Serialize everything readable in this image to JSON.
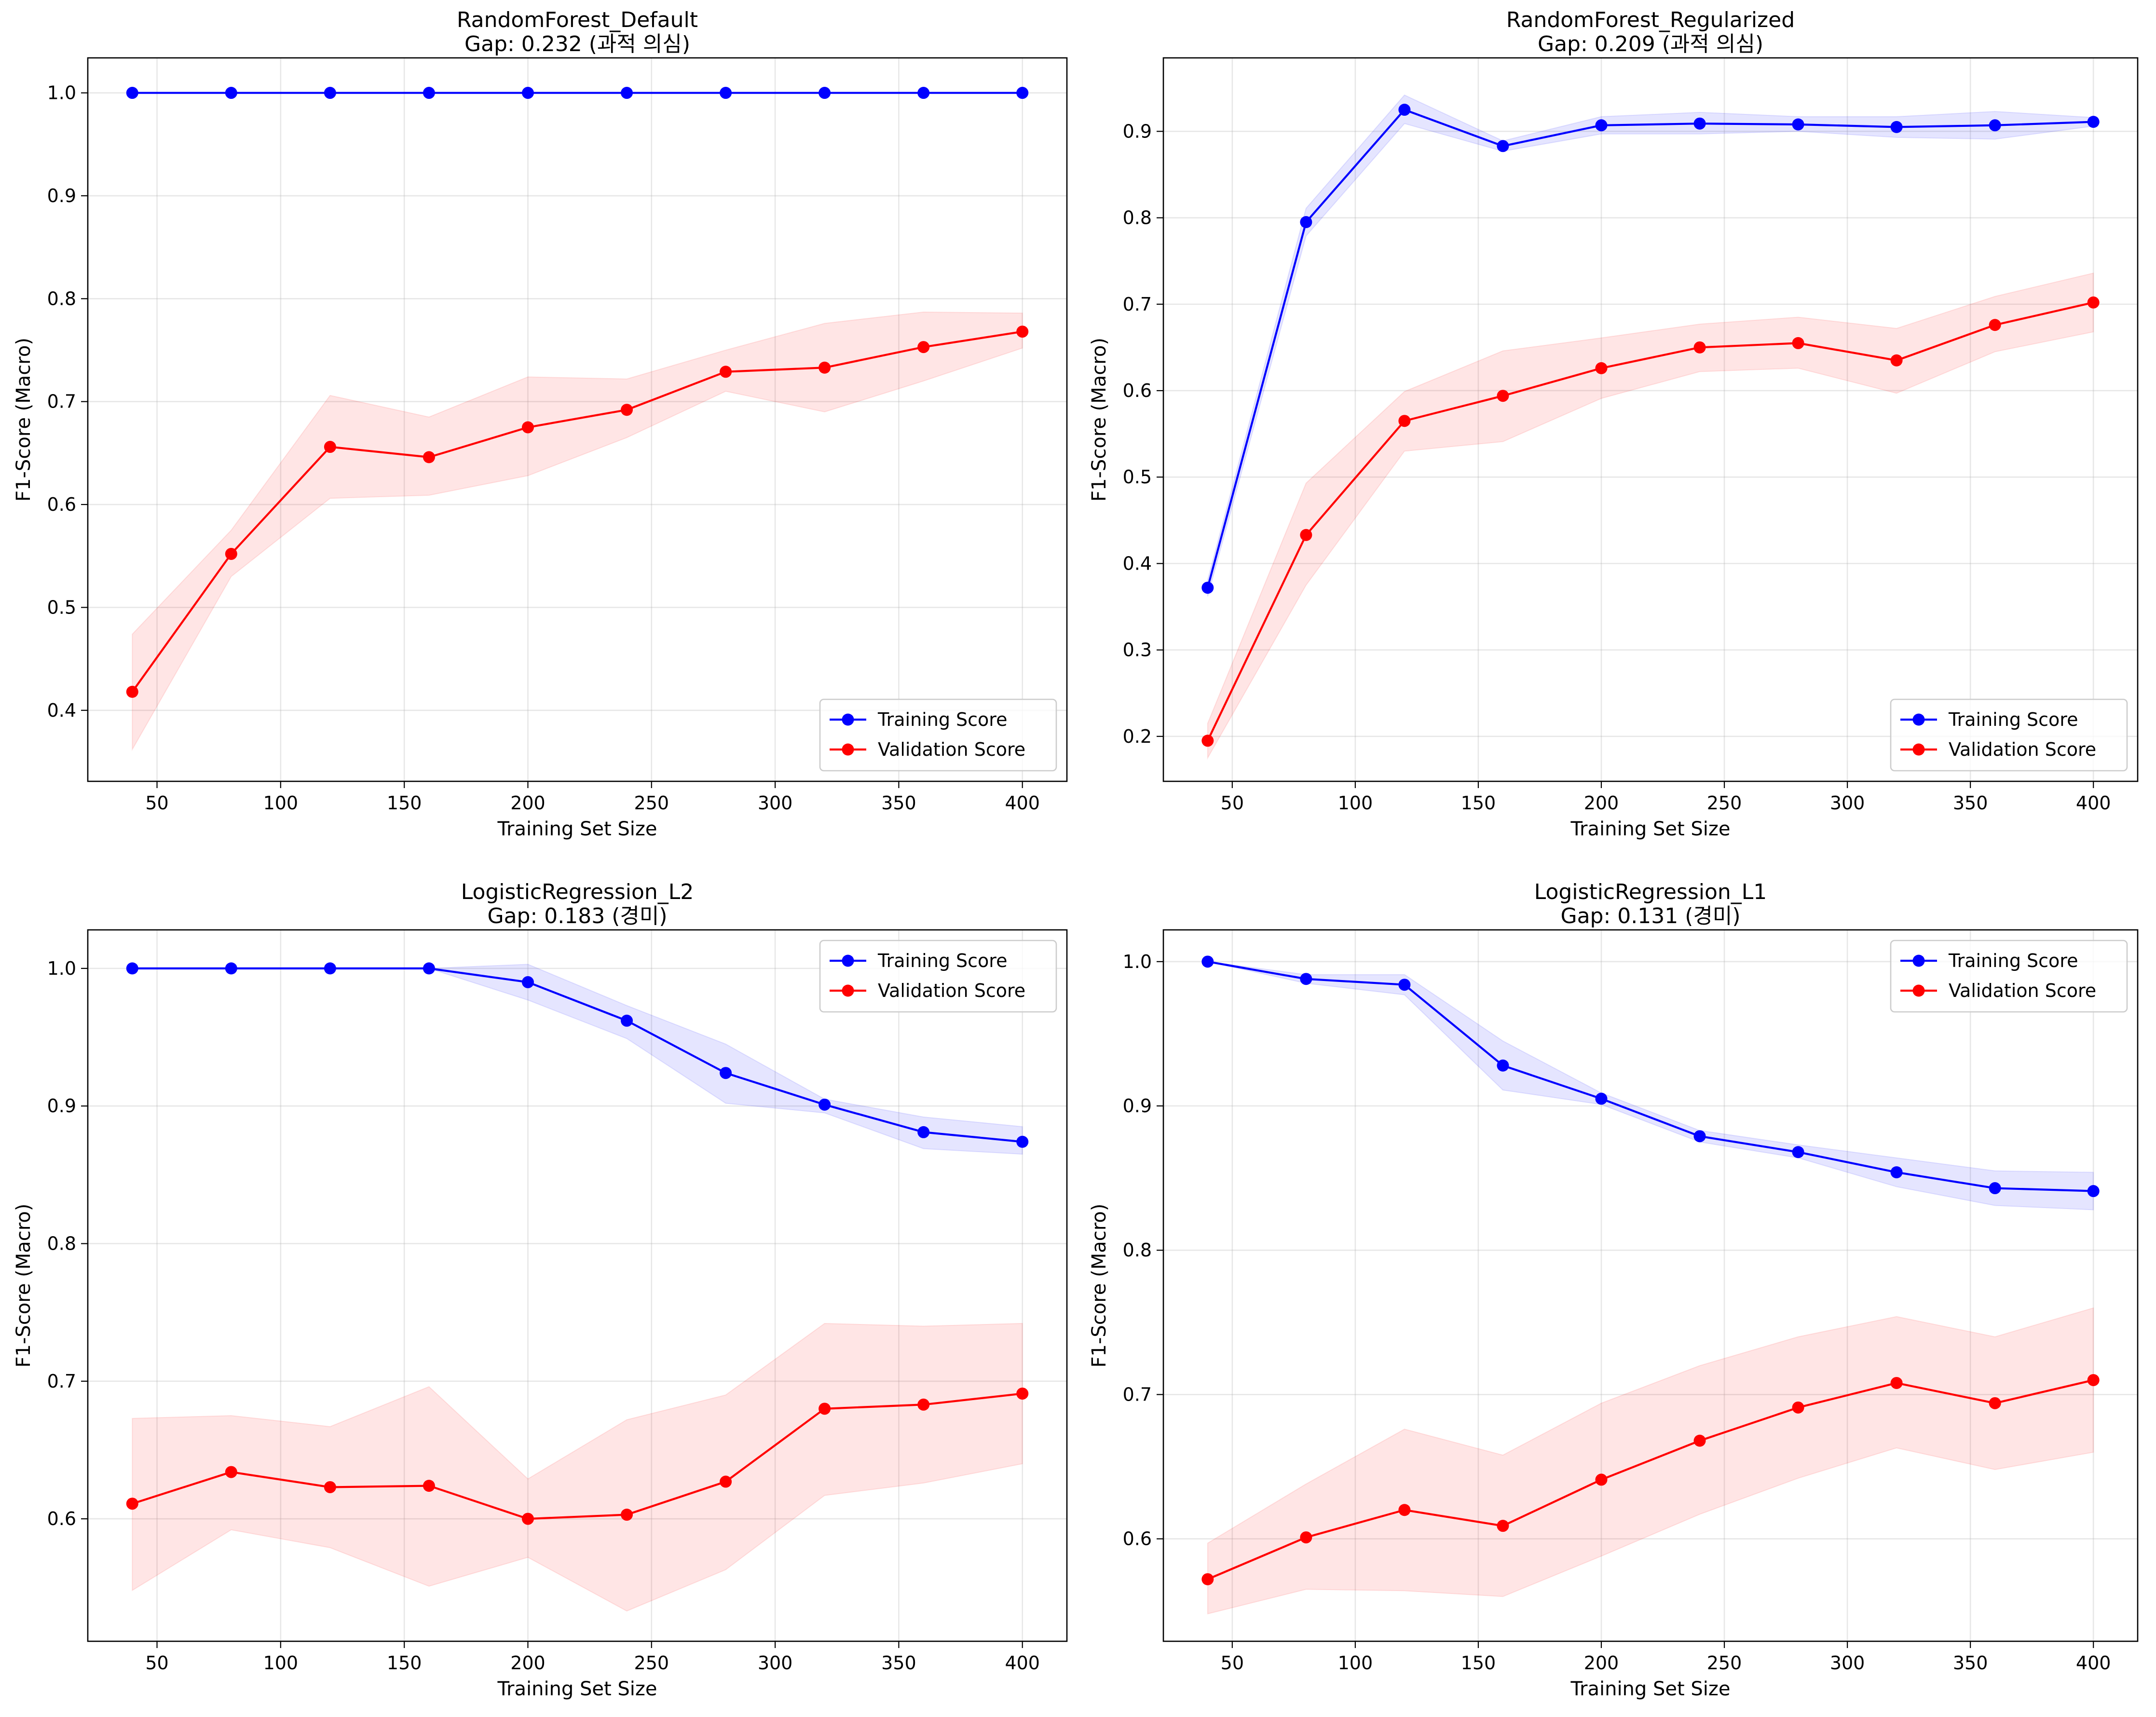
{
  "colors": {
    "training": "#0000ff",
    "validation": "#ff0000"
  },
  "chart_data": [
    {
      "type": "line",
      "title": "RandomForest_Default",
      "subtitle": "Gap: 0.232 (과적 의심)",
      "xlabel": "Training Set Size",
      "ylabel": "F1-Score (Macro)",
      "xlim": [
        22,
        418
      ],
      "ylim": [
        0.331,
        1.034
      ],
      "xticks": [
        50,
        100,
        150,
        200,
        250,
        300,
        350,
        400
      ],
      "yticks": [
        0.4,
        0.5,
        0.6,
        0.7,
        0.8,
        0.9,
        1.0
      ],
      "ytick_labels": [
        "0.4",
        "0.5",
        "0.6",
        "0.7",
        "0.8",
        "0.9",
        "1.0"
      ],
      "legend_position": "lower-right",
      "grid": true,
      "x": [
        40,
        80,
        120,
        160,
        200,
        240,
        280,
        320,
        360,
        400
      ],
      "series": [
        {
          "name": "Training Score",
          "values": [
            1.0,
            1.0,
            1.0,
            1.0,
            1.0,
            1.0,
            1.0,
            1.0,
            1.0,
            1.0
          ],
          "lower": [
            1.0,
            1.0,
            1.0,
            1.0,
            1.0,
            1.0,
            1.0,
            1.0,
            1.0,
            1.0
          ],
          "upper": [
            1.0,
            1.0,
            1.0,
            1.0,
            1.0,
            1.0,
            1.0,
            1.0,
            1.0,
            1.0
          ]
        },
        {
          "name": "Validation Score",
          "values": [
            0.418,
            0.552,
            0.656,
            0.646,
            0.675,
            0.692,
            0.729,
            0.733,
            0.753,
            0.768
          ],
          "lower": [
            0.362,
            0.53,
            0.606,
            0.609,
            0.628,
            0.665,
            0.71,
            0.69,
            0.72,
            0.752
          ],
          "upper": [
            0.474,
            0.575,
            0.706,
            0.685,
            0.724,
            0.722,
            0.75,
            0.776,
            0.787,
            0.786
          ]
        }
      ]
    },
    {
      "type": "line",
      "title": "RandomForest_Regularized",
      "subtitle": "Gap: 0.209 (과적 의심)",
      "xlabel": "Training Set Size",
      "ylabel": "F1-Score (Macro)",
      "xlim": [
        22,
        418
      ],
      "ylim": [
        0.148,
        0.985
      ],
      "xticks": [
        50,
        100,
        150,
        200,
        250,
        300,
        350,
        400
      ],
      "yticks": [
        0.2,
        0.3,
        0.4,
        0.5,
        0.6,
        0.7,
        0.8,
        0.9
      ],
      "ytick_labels": [
        "0.2",
        "0.3",
        "0.4",
        "0.5",
        "0.6",
        "0.7",
        "0.8",
        "0.9"
      ],
      "legend_position": "lower-right",
      "grid": true,
      "x": [
        40,
        80,
        120,
        160,
        200,
        240,
        280,
        320,
        360,
        400
      ],
      "series": [
        {
          "name": "Training Score",
          "values": [
            0.372,
            0.795,
            0.925,
            0.883,
            0.907,
            0.909,
            0.908,
            0.905,
            0.907,
            0.911
          ],
          "lower": [
            0.362,
            0.779,
            0.909,
            0.877,
            0.897,
            0.897,
            0.9,
            0.893,
            0.891,
            0.906
          ],
          "upper": [
            0.381,
            0.811,
            0.942,
            0.889,
            0.917,
            0.922,
            0.917,
            0.917,
            0.923,
            0.916
          ]
        },
        {
          "name": "Validation Score",
          "values": [
            0.195,
            0.433,
            0.565,
            0.594,
            0.626,
            0.65,
            0.655,
            0.635,
            0.676,
            0.702
          ],
          "lower": [
            0.175,
            0.375,
            0.53,
            0.541,
            0.591,
            0.622,
            0.626,
            0.597,
            0.645,
            0.668
          ],
          "upper": [
            0.215,
            0.493,
            0.599,
            0.646,
            0.661,
            0.677,
            0.685,
            0.672,
            0.709,
            0.736
          ]
        }
      ]
    },
    {
      "type": "line",
      "title": "LogisticRegression_L2",
      "subtitle": "Gap: 0.183 (경미)",
      "xlabel": "Training Set Size",
      "ylabel": "F1-Score (Macro)",
      "xlim": [
        22,
        418
      ],
      "ylim": [
        0.511,
        1.028
      ],
      "xticks": [
        50,
        100,
        150,
        200,
        250,
        300,
        350,
        400
      ],
      "yticks": [
        0.6,
        0.7,
        0.8,
        0.9,
        1.0
      ],
      "ytick_labels": [
        "0.6",
        "0.7",
        "0.8",
        "0.9",
        "1.0"
      ],
      "legend_position": "upper-right",
      "grid": true,
      "x": [
        40,
        80,
        120,
        160,
        200,
        240,
        280,
        320,
        360,
        400
      ],
      "series": [
        {
          "name": "Training Score",
          "values": [
            1.0,
            1.0,
            1.0,
            1.0,
            0.99,
            0.962,
            0.924,
            0.901,
            0.881,
            0.874
          ],
          "lower": [
            1.0,
            1.0,
            1.0,
            1.0,
            0.977,
            0.949,
            0.902,
            0.895,
            0.869,
            0.865
          ],
          "upper": [
            1.0,
            1.0,
            1.0,
            1.0,
            1.003,
            0.973,
            0.945,
            0.905,
            0.892,
            0.885
          ]
        },
        {
          "name": "Validation Score",
          "values": [
            0.611,
            0.634,
            0.623,
            0.624,
            0.6,
            0.603,
            0.627,
            0.68,
            0.683,
            0.691
          ],
          "lower": [
            0.548,
            0.592,
            0.579,
            0.551,
            0.572,
            0.533,
            0.563,
            0.617,
            0.626,
            0.64
          ],
          "upper": [
            0.673,
            0.675,
            0.667,
            0.696,
            0.629,
            0.672,
            0.69,
            0.742,
            0.74,
            0.742
          ]
        }
      ]
    },
    {
      "type": "line",
      "title": "LogisticRegression_L1",
      "subtitle": "Gap: 0.131 (경미)",
      "xlabel": "Training Set Size",
      "ylabel": "F1-Score (Macro)",
      "xlim": [
        22,
        418
      ],
      "ylim": [
        0.529,
        1.022
      ],
      "xticks": [
        50,
        100,
        150,
        200,
        250,
        300,
        350,
        400
      ],
      "yticks": [
        0.6,
        0.7,
        0.8,
        0.9,
        1.0
      ],
      "ytick_labels": [
        "0.6",
        "0.7",
        "0.8",
        "0.9",
        "1.0"
      ],
      "legend_position": "upper-right",
      "grid": true,
      "x": [
        40,
        80,
        120,
        160,
        200,
        240,
        280,
        320,
        360,
        400
      ],
      "series": [
        {
          "name": "Training Score",
          "values": [
            1.0,
            0.988,
            0.984,
            0.928,
            0.905,
            0.879,
            0.868,
            0.854,
            0.843,
            0.841
          ],
          "lower": [
            1.0,
            0.985,
            0.977,
            0.911,
            0.901,
            0.875,
            0.864,
            0.844,
            0.831,
            0.828
          ],
          "upper": [
            1.0,
            0.991,
            0.991,
            0.945,
            0.909,
            0.883,
            0.873,
            0.864,
            0.855,
            0.854
          ]
        },
        {
          "name": "Validation Score",
          "values": [
            0.572,
            0.601,
            0.62,
            0.609,
            0.641,
            0.668,
            0.691,
            0.708,
            0.694,
            0.71
          ],
          "lower": [
            0.548,
            0.565,
            0.564,
            0.56,
            0.588,
            0.617,
            0.642,
            0.663,
            0.648,
            0.66
          ],
          "upper": [
            0.597,
            0.638,
            0.676,
            0.658,
            0.694,
            0.72,
            0.74,
            0.754,
            0.74,
            0.76
          ]
        }
      ]
    }
  ]
}
